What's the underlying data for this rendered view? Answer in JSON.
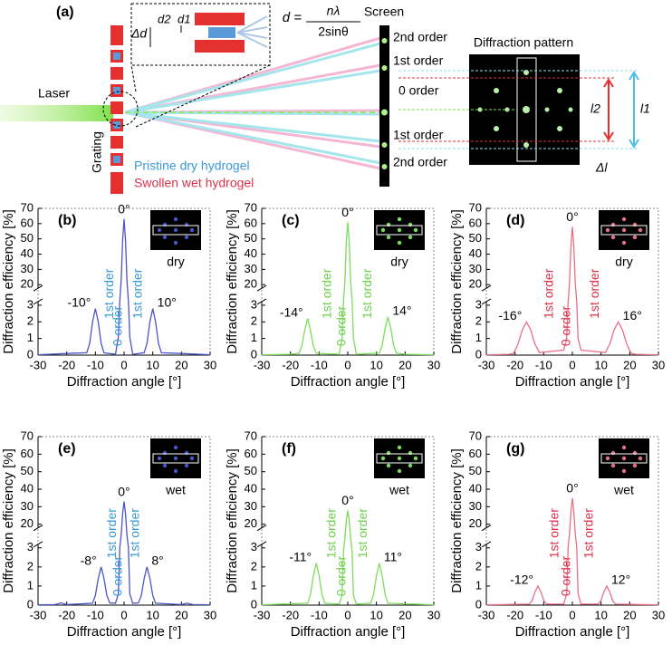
{
  "diagram": {
    "label": "(a)",
    "laser": "Laser",
    "grating": "Grating",
    "screen": "Screen",
    "formula_lhs": "d =",
    "formula_num": "nλ",
    "formula_den": "2sinθ",
    "delta_d": "Δd",
    "d2": "d2",
    "d1": "d1",
    "orders": [
      "2nd order",
      "1st order",
      "0 order",
      "1st order",
      "2nd order"
    ],
    "dry_legend": "Pristine dry hydrogel",
    "wet_legend": "Swollen wet hydrogel",
    "pattern_title": "Diffraction pattern",
    "l2": "l2",
    "l1": "l1",
    "delta_l": "Δl"
  },
  "chart_data": [
    {
      "type": "line",
      "panel": "(b)",
      "condition": "dry",
      "color": "#4b55c8",
      "label_color": "#3a9ad9",
      "x_label": "Diffraction angle [°]",
      "y_label": "Diffraction efficiency [%]",
      "xlim": [
        -30,
        30
      ],
      "xticks": [
        -30,
        -20,
        -10,
        0,
        10,
        20,
        30
      ],
      "ylim": [
        0,
        70
      ],
      "ybreak": [
        3,
        20
      ],
      "yticks": [
        0,
        1,
        2,
        3,
        20,
        30,
        40,
        50,
        60,
        70
      ],
      "x": [
        -30,
        -20,
        -13,
        -12,
        -11,
        -10,
        -9,
        -8,
        -7,
        -3,
        -2,
        -1.5,
        -1,
        -0.5,
        0,
        0.5,
        1,
        1.5,
        2,
        3,
        7,
        8,
        9,
        10,
        11,
        12,
        13,
        20,
        30
      ],
      "values": [
        0.02,
        0.1,
        0.14,
        0.7,
        2.0,
        2.8,
        2.0,
        0.7,
        0.14,
        0.05,
        1.1,
        6.3,
        22.7,
        49,
        63,
        49,
        22.7,
        6.3,
        1.1,
        0.05,
        0.14,
        0.7,
        2.0,
        2.8,
        2.0,
        0.7,
        0.14,
        0.1,
        0.02
      ],
      "peak_labels": [
        {
          "value": -10,
          "label": "-10°"
        },
        {
          "value": 0,
          "label": "0°"
        },
        {
          "value": 10,
          "label": "10°"
        }
      ],
      "order_labels": [
        "1st order",
        "0 order",
        "1st order"
      ]
    },
    {
      "type": "line",
      "panel": "(c)",
      "condition": "dry",
      "color": "#7ddc5a",
      "label_color": "#6fd14f",
      "x_label": "Diffraction angle [°]",
      "y_label": "Diffraction efficiency [%]",
      "xlim": [
        -30,
        30
      ],
      "xticks": [
        -30,
        -20,
        -10,
        0,
        10,
        20,
        30
      ],
      "ylim": [
        0,
        70
      ],
      "ybreak": [
        3,
        20
      ],
      "yticks": [
        0,
        1,
        2,
        3,
        20,
        30,
        40,
        50,
        60,
        70
      ],
      "x": [
        -30,
        -20,
        -17,
        -16,
        -15,
        -14,
        -13,
        -12,
        -11,
        -3,
        -2,
        -1.5,
        -1,
        -0.5,
        0,
        0.5,
        1,
        1.5,
        2,
        3,
        11,
        12,
        13,
        14,
        15,
        16,
        17,
        20,
        30
      ],
      "values": [
        0.02,
        0.05,
        0.11,
        0.55,
        1.5,
        2.2,
        1.5,
        0.55,
        0.11,
        0.05,
        1.0,
        6.1,
        22,
        48,
        61,
        48,
        22,
        6.1,
        1.0,
        0.05,
        0.12,
        0.58,
        1.6,
        2.3,
        1.6,
        0.58,
        0.12,
        0.05,
        0.02
      ],
      "peak_labels": [
        {
          "value": -14,
          "label": "-14°"
        },
        {
          "value": 0,
          "label": "0°"
        },
        {
          "value": 14,
          "label": "14°"
        }
      ],
      "order_labels": [
        "1st order",
        "0 order",
        "1st order"
      ]
    },
    {
      "type": "line",
      "panel": "(d)",
      "condition": "dry",
      "color": "#e8708a",
      "label_color": "#e0304a",
      "x_label": "Diffraction angle [°]",
      "y_label": "Diffraction efficiency [%]",
      "xlim": [
        -30,
        30
      ],
      "xticks": [
        -30,
        -20,
        -10,
        0,
        10,
        20,
        30
      ],
      "ylim": [
        0,
        70
      ],
      "ybreak": [
        3,
        20
      ],
      "yticks": [
        0,
        1,
        2,
        3,
        20,
        30,
        40,
        50,
        60,
        70
      ],
      "x": [
        -30,
        -22,
        -20.5,
        -19,
        -17.5,
        -16,
        -14.5,
        -13,
        -11.5,
        -3,
        -2,
        -1.5,
        -1,
        -0.5,
        0,
        0.5,
        1,
        1.5,
        2,
        3,
        11.5,
        13,
        14.5,
        16,
        17.5,
        19,
        20.5,
        22,
        30
      ],
      "values": [
        0.02,
        0.05,
        0.1,
        0.65,
        1.5,
        2.0,
        1.5,
        0.65,
        0.15,
        0.3,
        1.0,
        5.8,
        21,
        45,
        58,
        45,
        21,
        5.8,
        1.0,
        0.3,
        0.15,
        0.65,
        1.5,
        2.0,
        1.5,
        0.65,
        0.1,
        0.05,
        0.02
      ],
      "peak_labels": [
        {
          "value": -16,
          "label": "-16°"
        },
        {
          "value": 0,
          "label": "0°"
        },
        {
          "value": 16,
          "label": "16°"
        }
      ],
      "order_labels": [
        "1st order",
        "0 order",
        "1st order"
      ]
    },
    {
      "type": "line",
      "panel": "(e)",
      "condition": "wet",
      "color": "#4b55c8",
      "label_color": "#3a9ad9",
      "x_label": "Diffraction angle [°]",
      "y_label": "Diffraction efficiency [%]",
      "xlim": [
        -30,
        30
      ],
      "xticks": [
        -30,
        -20,
        -10,
        0,
        10,
        20,
        30
      ],
      "ylim": [
        0,
        70
      ],
      "ybreak": [
        3,
        20
      ],
      "yticks": [
        0,
        1,
        2,
        3,
        20,
        30,
        40,
        50,
        60,
        70
      ],
      "x": [
        -30,
        -24,
        -22,
        -20,
        -11,
        -10,
        -9,
        -8,
        -7,
        -6,
        -5,
        -3,
        -2,
        -1.5,
        -1,
        -0.5,
        0,
        0.5,
        1,
        1.5,
        2,
        3,
        5,
        6,
        7,
        8,
        9,
        10,
        11,
        20,
        22,
        24,
        30
      ],
      "values": [
        0.02,
        0.03,
        0.12,
        0.03,
        0.1,
        0.5,
        1.4,
        2.0,
        1.4,
        0.5,
        0.12,
        0.1,
        0.6,
        3.3,
        12,
        26,
        33,
        26,
        12,
        3.3,
        0.6,
        0.1,
        0.12,
        0.5,
        1.4,
        2.0,
        1.4,
        0.5,
        0.1,
        0.03,
        0.1,
        0.03,
        0.02
      ],
      "peak_labels": [
        {
          "value": -8,
          "label": "-8°"
        },
        {
          "value": 0,
          "label": "0°"
        },
        {
          "value": 8,
          "label": "8°"
        }
      ],
      "order_labels": [
        "1st order",
        "0 order",
        "1st order"
      ]
    },
    {
      "type": "line",
      "panel": "(f)",
      "condition": "wet",
      "color": "#7ddc5a",
      "label_color": "#6fd14f",
      "x_label": "Diffraction angle [°]",
      "y_label": "Diffraction efficiency [%]",
      "xlim": [
        -30,
        30
      ],
      "xticks": [
        -30,
        -20,
        -10,
        0,
        10,
        20,
        30
      ],
      "ylim": [
        0,
        70
      ],
      "ybreak": [
        3,
        20
      ],
      "yticks": [
        0,
        1,
        2,
        3,
        20,
        30,
        40,
        50,
        60,
        70
      ],
      "x": [
        -30,
        -14,
        -13,
        -12,
        -11,
        -10,
        -9,
        -8,
        -3,
        -2,
        -1.5,
        -1,
        -0.5,
        0,
        0.5,
        1,
        1.5,
        2,
        3,
        8,
        9,
        10,
        11,
        12,
        13,
        14,
        30
      ],
      "values": [
        0.02,
        0.1,
        0.55,
        1.55,
        2.2,
        1.55,
        0.55,
        0.1,
        0.05,
        0.5,
        2.8,
        10,
        22,
        28,
        22,
        10,
        2.8,
        0.5,
        0.05,
        0.1,
        0.55,
        1.55,
        2.2,
        1.55,
        0.55,
        0.1,
        0.02
      ],
      "peak_labels": [
        {
          "value": -11,
          "label": "-11°"
        },
        {
          "value": 0,
          "label": "0°"
        },
        {
          "value": 11,
          "label": "11°"
        }
      ],
      "order_labels": [
        "1st order",
        "0 order",
        "1st order"
      ]
    },
    {
      "type": "line",
      "panel": "(g)",
      "condition": "wet",
      "color": "#e8708a",
      "label_color": "#e0304a",
      "x_label": "Diffraction angle [°]",
      "y_label": "Diffraction efficiency [%]",
      "xlim": [
        -30,
        30
      ],
      "xticks": [
        -30,
        -20,
        -10,
        0,
        10,
        20,
        30
      ],
      "ylim": [
        0,
        70
      ],
      "ybreak": [
        3,
        20
      ],
      "yticks": [
        0,
        1,
        2,
        3,
        20,
        30,
        40,
        50,
        60,
        70
      ],
      "x": [
        -30,
        -15,
        -14,
        -13,
        -12,
        -11,
        -10,
        -9,
        -3,
        -2,
        -1.5,
        -1,
        -0.5,
        0,
        0.5,
        1,
        1.5,
        2,
        3,
        9,
        10,
        11,
        12,
        13,
        14,
        15,
        30
      ],
      "values": [
        0.02,
        0.05,
        0.25,
        0.7,
        1.0,
        0.7,
        0.25,
        0.05,
        0.05,
        0.6,
        3.5,
        13,
        27,
        35,
        27,
        13,
        3.5,
        0.6,
        0.05,
        0.05,
        0.25,
        0.7,
        1.0,
        0.7,
        0.25,
        0.05,
        0.02
      ],
      "peak_labels": [
        {
          "value": -12,
          "label": "-12°"
        },
        {
          "value": 0,
          "label": "0°"
        },
        {
          "value": 12,
          "label": "12°"
        }
      ],
      "order_labels": [
        "1st order",
        "0 order",
        "1st order"
      ]
    }
  ]
}
